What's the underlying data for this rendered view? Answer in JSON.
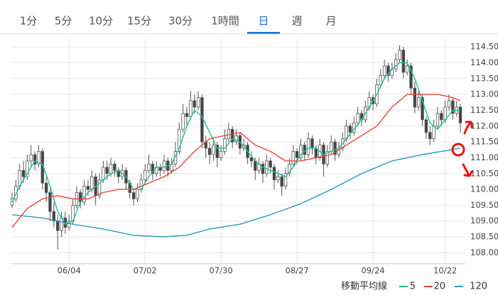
{
  "tabs": [
    "1分",
    "5分",
    "10分",
    "15分",
    "30分",
    "1時間",
    "日",
    "週",
    "月"
  ],
  "selected_tab": 6,
  "chart_data": {
    "type": "candlestick",
    "legend_title": "移動平均線",
    "up_color": "#ffffff",
    "down_color": "#444444",
    "edge_color": "#555555",
    "grid": true,
    "xlim": [
      0,
      119.3
    ],
    "ylim": [
      107.65,
      114.75
    ],
    "xticks": [
      {
        "value": 15,
        "label": "06/04"
      },
      {
        "value": 35,
        "label": "07/02"
      },
      {
        "value": 55,
        "label": "07/30"
      },
      {
        "value": 75,
        "label": "08/27"
      },
      {
        "value": 95,
        "label": "09/24"
      },
      {
        "value": 114,
        "label": "10/22"
      }
    ],
    "yticks": [
      {
        "value": 108,
        "label": "108.00"
      },
      {
        "value": 108.5,
        "label": "108.50"
      },
      {
        "value": 109,
        "label": "109.00"
      },
      {
        "value": 109.5,
        "label": "109.50"
      },
      {
        "value": 110,
        "label": "110.00"
      },
      {
        "value": 110.5,
        "label": "110.50"
      },
      {
        "value": 111,
        "label": "111.00"
      },
      {
        "value": 111.5,
        "label": "111.50"
      },
      {
        "value": 112,
        "label": "112.00"
      },
      {
        "value": 112.5,
        "label": "112.50"
      },
      {
        "value": 113,
        "label": "113.00"
      },
      {
        "value": 113.5,
        "label": "113.50"
      },
      {
        "value": 114,
        "label": "114.00"
      },
      {
        "value": 114.5,
        "label": "114.50"
      }
    ],
    "candles": [
      [
        109.5,
        109.9,
        109.4,
        109.7
      ],
      [
        109.7,
        110.3,
        109.6,
        110.1
      ],
      [
        110.1,
        110.8,
        110.0,
        110.6
      ],
      [
        110.6,
        110.9,
        110.2,
        110.4
      ],
      [
        110.4,
        111.1,
        110.3,
        110.9
      ],
      [
        110.9,
        111.4,
        110.7,
        111.1
      ],
      [
        111.1,
        111.2,
        110.6,
        110.8
      ],
      [
        110.8,
        111.4,
        110.7,
        111.2
      ],
      [
        111.2,
        111.3,
        110.0,
        110.2
      ],
      [
        110.2,
        110.4,
        109.6,
        109.9
      ],
      [
        109.9,
        110.0,
        109.0,
        109.3
      ],
      [
        109.3,
        109.6,
        108.8,
        109.0
      ],
      [
        109.0,
        109.2,
        108.1,
        108.7
      ],
      [
        108.7,
        109.3,
        108.5,
        109.1
      ],
      [
        109.1,
        109.3,
        108.6,
        108.8
      ],
      [
        108.8,
        109.2,
        108.7,
        109.0
      ],
      [
        109.0,
        109.7,
        108.9,
        109.5
      ],
      [
        109.5,
        110.1,
        109.4,
        109.9
      ],
      [
        109.9,
        110.0,
        109.4,
        109.6
      ],
      [
        109.6,
        110.3,
        109.5,
        110.1
      ],
      [
        110.1,
        110.3,
        109.8,
        110.0
      ],
      [
        110.0,
        110.6,
        109.9,
        110.4
      ],
      [
        110.4,
        110.5,
        109.5,
        109.8
      ],
      [
        109.8,
        110.5,
        109.7,
        110.3
      ],
      [
        110.3,
        110.9,
        110.2,
        110.7
      ],
      [
        110.7,
        110.9,
        110.3,
        110.5
      ],
      [
        110.5,
        111.0,
        110.4,
        110.8
      ],
      [
        110.8,
        110.9,
        110.4,
        110.6
      ],
      [
        110.6,
        110.7,
        110.2,
        110.4
      ],
      [
        110.4,
        110.8,
        110.3,
        110.6
      ],
      [
        110.6,
        110.7,
        110.0,
        110.2
      ],
      [
        110.2,
        110.3,
        109.7,
        109.9
      ],
      [
        109.9,
        110.0,
        109.5,
        109.7
      ],
      [
        109.7,
        110.2,
        109.6,
        110.0
      ],
      [
        110.0,
        110.5,
        109.9,
        110.3
      ],
      [
        110.3,
        110.8,
        110.2,
        110.6
      ],
      [
        110.6,
        111.1,
        110.5,
        110.8
      ],
      [
        110.8,
        110.9,
        110.3,
        110.5
      ],
      [
        110.5,
        110.9,
        110.4,
        110.7
      ],
      [
        110.7,
        110.8,
        110.4,
        110.6
      ],
      [
        110.6,
        111.1,
        110.5,
        110.9
      ],
      [
        110.9,
        111.0,
        110.4,
        110.6
      ],
      [
        110.6,
        111.0,
        110.5,
        110.8
      ],
      [
        110.8,
        111.5,
        110.7,
        111.2
      ],
      [
        111.2,
        112.1,
        111.1,
        111.9
      ],
      [
        111.9,
        112.7,
        111.8,
        112.4
      ],
      [
        112.4,
        112.6,
        112.0,
        112.3
      ],
      [
        112.3,
        113.1,
        112.2,
        112.8
      ],
      [
        112.8,
        113.0,
        112.4,
        112.6
      ],
      [
        112.6,
        113.1,
        112.5,
        112.9
      ],
      [
        112.9,
        113.0,
        111.3,
        111.5
      ],
      [
        111.5,
        111.7,
        111.0,
        111.3
      ],
      [
        111.3,
        111.5,
        110.8,
        111.1
      ],
      [
        111.1,
        111.6,
        110.9,
        111.4
      ],
      [
        111.4,
        111.5,
        110.7,
        111.0
      ],
      [
        111.0,
        111.4,
        110.9,
        111.2
      ],
      [
        111.2,
        111.9,
        111.1,
        111.6
      ],
      [
        111.6,
        112.1,
        111.5,
        111.9
      ],
      [
        111.9,
        112.0,
        111.3,
        111.5
      ],
      [
        111.5,
        111.9,
        111.4,
        111.7
      ],
      [
        111.7,
        111.8,
        111.1,
        111.3
      ],
      [
        111.3,
        111.6,
        111.2,
        111.4
      ],
      [
        111.4,
        111.5,
        110.8,
        111.0
      ],
      [
        111.0,
        111.2,
        110.7,
        110.9
      ],
      [
        110.9,
        111.0,
        110.3,
        110.6
      ],
      [
        110.6,
        111.0,
        110.5,
        110.8
      ],
      [
        110.8,
        110.9,
        110.2,
        110.5
      ],
      [
        110.5,
        111.1,
        110.4,
        110.9
      ],
      [
        110.9,
        111.0,
        110.5,
        110.7
      ],
      [
        110.7,
        110.8,
        110.0,
        110.3
      ],
      [
        110.3,
        110.6,
        110.2,
        110.4
      ],
      [
        110.4,
        110.5,
        109.8,
        110.1
      ],
      [
        110.1,
        110.7,
        110.0,
        110.5
      ],
      [
        110.5,
        111.0,
        110.4,
        110.8
      ],
      [
        110.8,
        111.4,
        110.7,
        111.2
      ],
      [
        111.2,
        111.3,
        110.8,
        111.0
      ],
      [
        111.0,
        111.6,
        110.9,
        111.4
      ],
      [
        111.4,
        111.5,
        110.9,
        111.1
      ],
      [
        111.1,
        111.8,
        111.0,
        111.6
      ],
      [
        111.6,
        111.7,
        111.1,
        111.3
      ],
      [
        111.3,
        111.4,
        110.8,
        111.0
      ],
      [
        111.0,
        111.6,
        110.9,
        111.4
      ],
      [
        111.4,
        111.5,
        110.4,
        110.8
      ],
      [
        110.8,
        111.4,
        110.7,
        111.2
      ],
      [
        111.2,
        111.7,
        111.1,
        111.5
      ],
      [
        111.5,
        111.6,
        110.9,
        111.1
      ],
      [
        111.1,
        111.5,
        111.0,
        111.3
      ],
      [
        111.3,
        111.8,
        111.2,
        111.6
      ],
      [
        111.6,
        112.2,
        111.5,
        112.0
      ],
      [
        112.0,
        112.1,
        111.6,
        111.8
      ],
      [
        111.8,
        112.3,
        111.7,
        112.1
      ],
      [
        112.1,
        112.6,
        112.0,
        112.4
      ],
      [
        112.4,
        112.5,
        112.0,
        112.2
      ],
      [
        112.2,
        112.8,
        112.1,
        112.6
      ],
      [
        112.6,
        113.1,
        112.5,
        112.9
      ],
      [
        112.9,
        113.0,
        112.5,
        112.7
      ],
      [
        112.7,
        113.5,
        112.6,
        113.3
      ],
      [
        113.3,
        113.8,
        113.2,
        113.6
      ],
      [
        113.6,
        114.1,
        113.5,
        113.9
      ],
      [
        113.9,
        114.0,
        113.4,
        113.6
      ],
      [
        113.6,
        114.0,
        113.5,
        113.8
      ],
      [
        113.8,
        114.3,
        113.7,
        114.1
      ],
      [
        114.1,
        114.55,
        114.0,
        114.4
      ],
      [
        114.4,
        114.5,
        113.5,
        113.7
      ],
      [
        113.7,
        114.1,
        113.6,
        113.9
      ],
      [
        113.9,
        114.0,
        113.0,
        113.2
      ],
      [
        113.2,
        113.4,
        112.4,
        112.6
      ],
      [
        112.6,
        113.1,
        112.5,
        112.9
      ],
      [
        112.9,
        113.0,
        112.0,
        112.2
      ],
      [
        112.2,
        112.3,
        111.6,
        111.8
      ],
      [
        111.8,
        112.0,
        111.4,
        111.6
      ],
      [
        111.6,
        112.2,
        111.5,
        112.0
      ],
      [
        112.0,
        112.6,
        111.9,
        112.4
      ],
      [
        112.4,
        112.5,
        112.0,
        112.2
      ],
      [
        112.2,
        112.8,
        112.1,
        112.6
      ],
      [
        112.6,
        113.0,
        112.5,
        112.8
      ],
      [
        112.8,
        112.9,
        112.2,
        112.4
      ],
      [
        112.4,
        112.8,
        112.3,
        112.6
      ],
      [
        112.6,
        112.7,
        111.8,
        112.1
      ]
    ],
    "series": [
      {
        "name": "5",
        "color": "#1fbf9a",
        "x": [
          0,
          2,
          4,
          6,
          8,
          10,
          12,
          14,
          16,
          18,
          20,
          22,
          24,
          26,
          28,
          30,
          32,
          34,
          36,
          38,
          40,
          42,
          44,
          46,
          48,
          50,
          52,
          54,
          56,
          58,
          60,
          62,
          64,
          66,
          68,
          70,
          72,
          74,
          76,
          78,
          80,
          82,
          84,
          86,
          88,
          90,
          92,
          94,
          96,
          98,
          100,
          102,
          104,
          106,
          108,
          110,
          112,
          114,
          116,
          118
        ],
        "values": [
          109.6,
          110.1,
          110.5,
          110.9,
          110.8,
          110.1,
          109.3,
          108.9,
          109.0,
          109.6,
          109.9,
          110.1,
          110.3,
          110.5,
          110.6,
          110.4,
          110.0,
          110.0,
          110.4,
          110.7,
          110.7,
          110.8,
          111.3,
          112.0,
          112.5,
          112.3,
          111.8,
          111.3,
          111.3,
          111.6,
          111.5,
          111.2,
          110.9,
          110.7,
          110.6,
          110.5,
          110.4,
          110.7,
          111.1,
          111.3,
          111.3,
          111.1,
          111.2,
          111.3,
          111.6,
          111.9,
          112.2,
          112.6,
          113.0,
          113.5,
          113.8,
          114.0,
          114.0,
          113.5,
          112.8,
          112.1,
          111.9,
          112.2,
          112.5,
          112.5
        ]
      },
      {
        "name": "20",
        "color": "#e8463c",
        "x": [
          0,
          4,
          8,
          12,
          16,
          20,
          24,
          28,
          32,
          36,
          40,
          44,
          48,
          52,
          56,
          60,
          64,
          68,
          72,
          76,
          80,
          84,
          88,
          92,
          96,
          100,
          104,
          108,
          112,
          116,
          118
        ],
        "values": [
          108.8,
          109.4,
          109.7,
          109.8,
          109.7,
          109.7,
          109.9,
          110.0,
          110.0,
          110.2,
          110.4,
          110.7,
          111.2,
          111.6,
          111.7,
          111.8,
          111.4,
          111.2,
          110.9,
          110.9,
          111.0,
          111.1,
          111.4,
          111.7,
          112.0,
          112.6,
          113.0,
          113.0,
          113.0,
          112.9,
          112.8
        ]
      },
      {
        "name": "120",
        "color": "#2a9bb8",
        "x": [
          0,
          8,
          16,
          24,
          32,
          40,
          46,
          52,
          60,
          68,
          76,
          84,
          92,
          100,
          108,
          118
        ],
        "values": [
          109.2,
          109.1,
          108.9,
          108.75,
          108.55,
          108.5,
          108.55,
          108.75,
          108.9,
          109.2,
          109.55,
          110.0,
          110.5,
          110.9,
          111.1,
          111.3
        ]
      }
    ]
  }
}
